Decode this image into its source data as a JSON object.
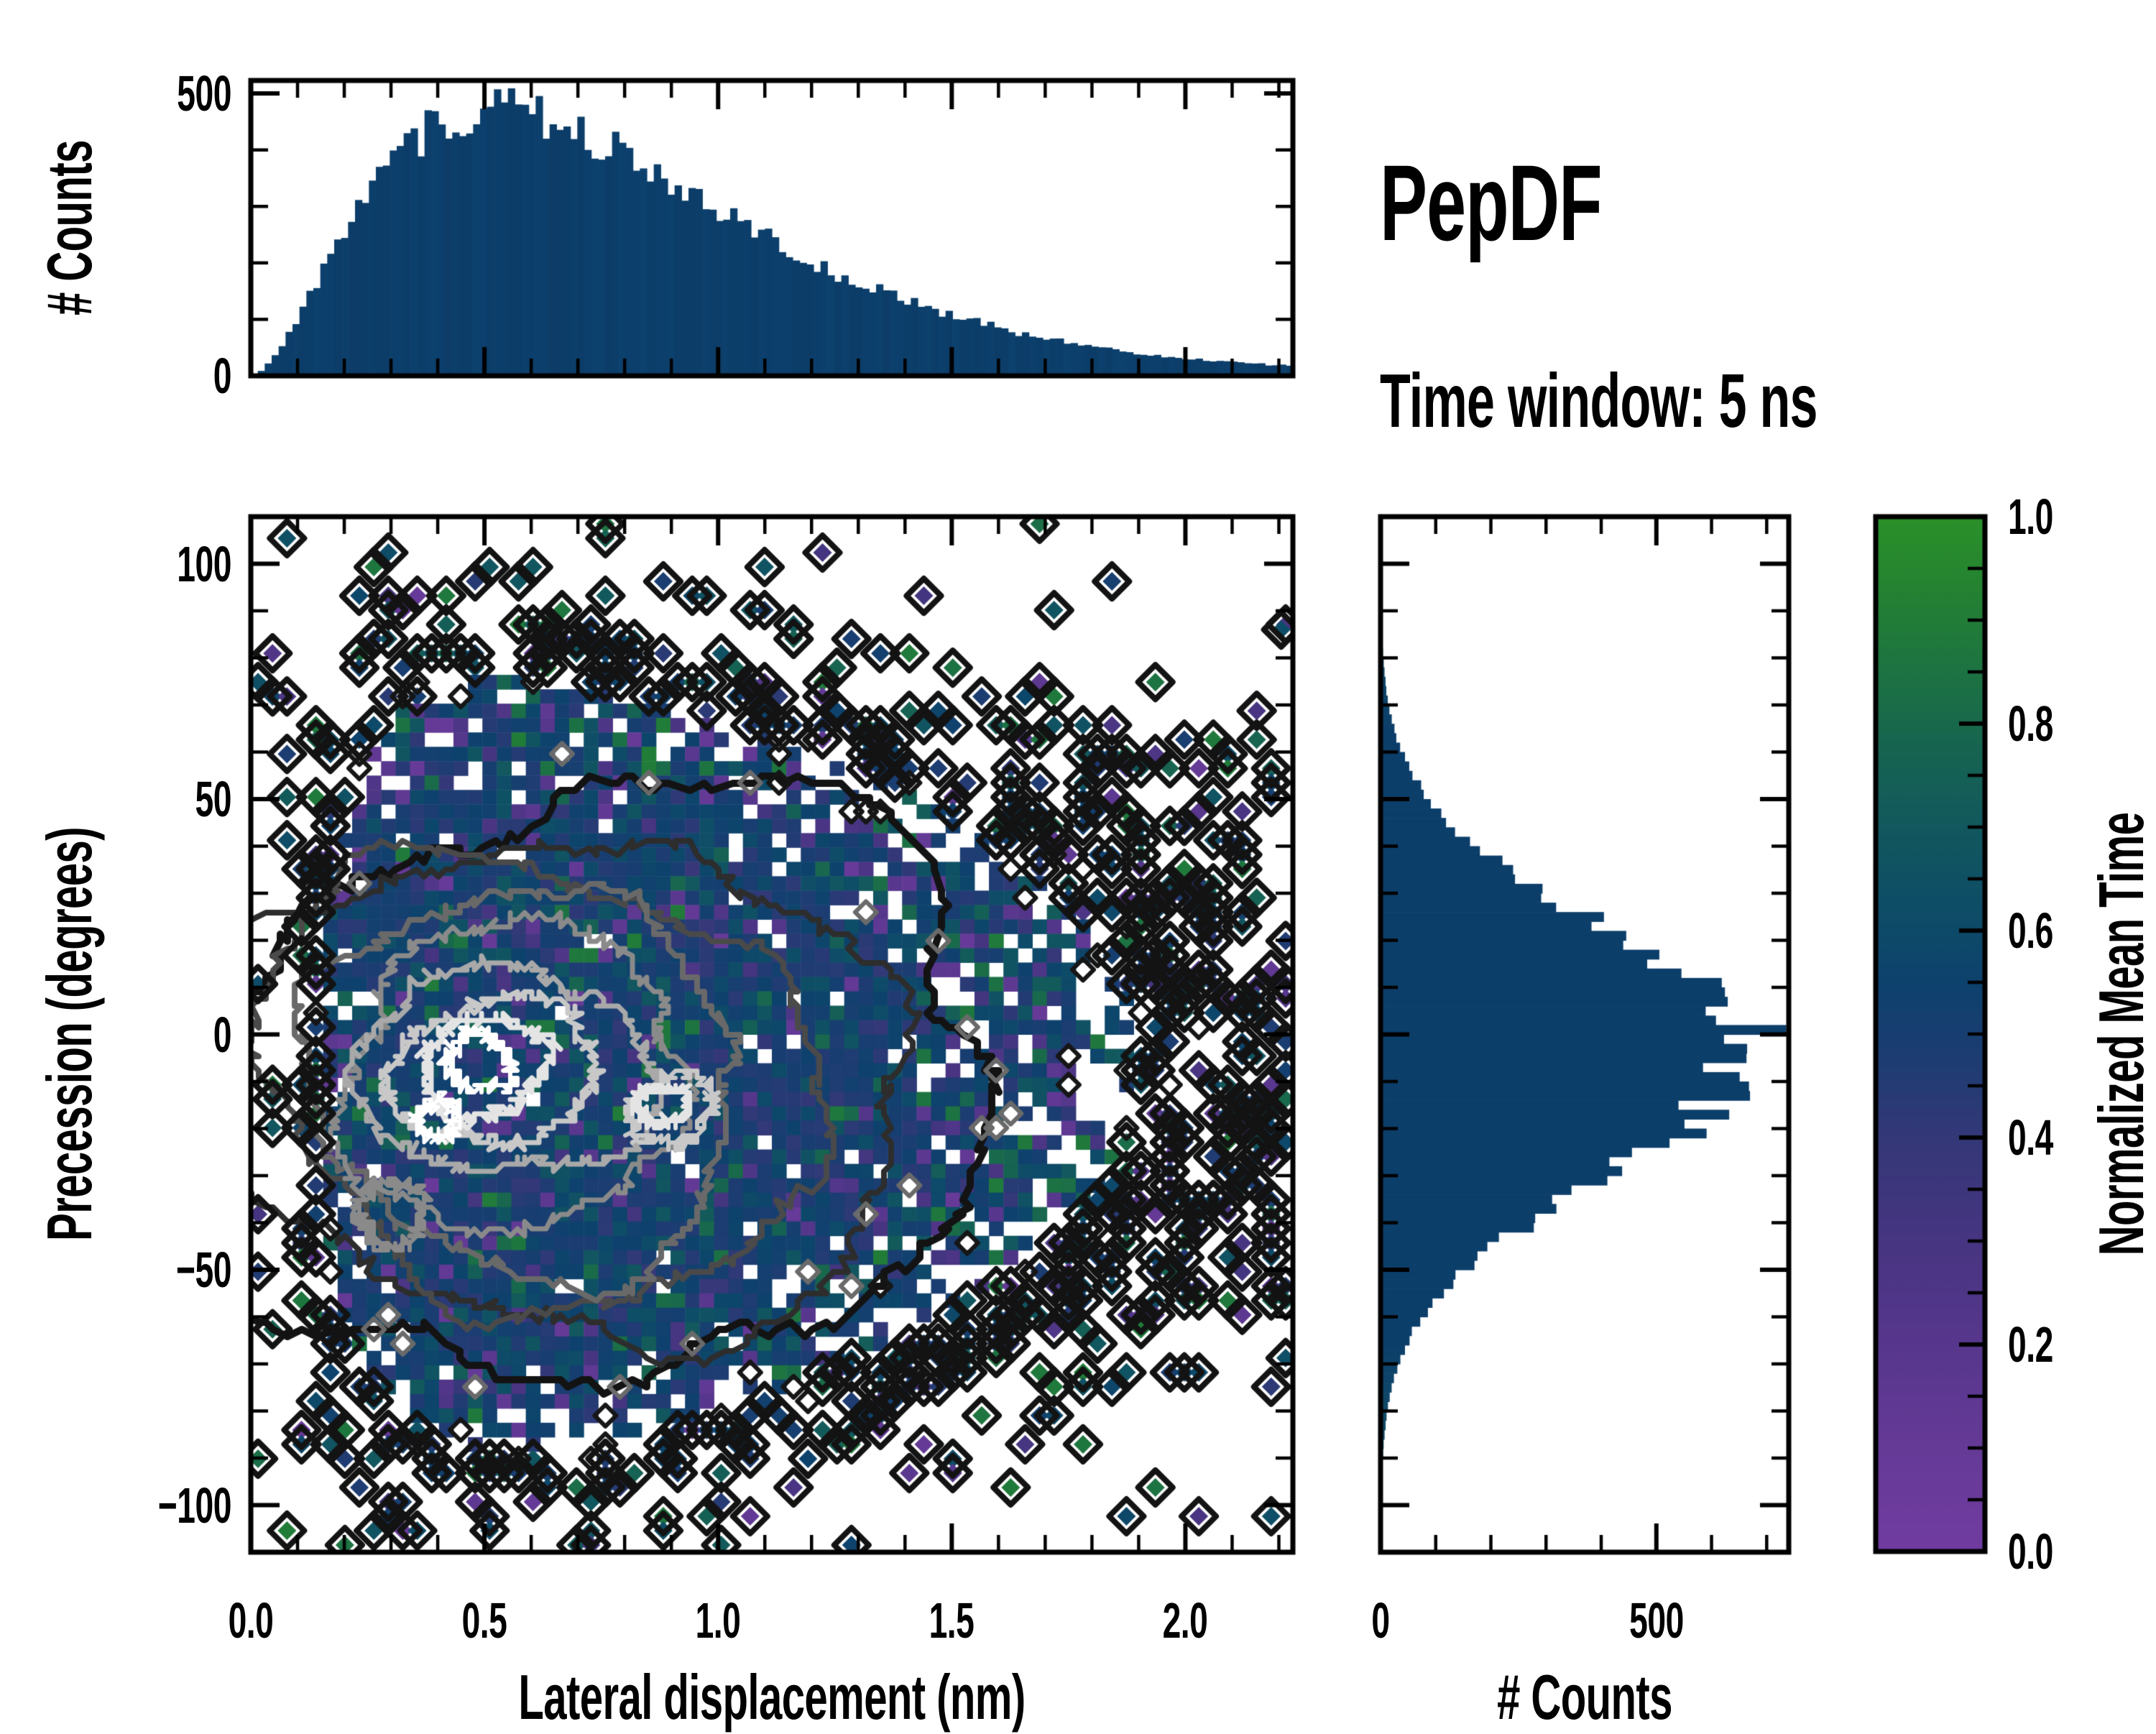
{
  "header": {
    "title": "PepDF",
    "subtitle": "Time window: 5 ns"
  },
  "figure": {
    "background": "#ffffff",
    "spine_color": "#000000",
    "histogram_bar_color": "#0c3e6a",
    "contour_outer_color": "#131313",
    "contour_inner_color": "#ffffff"
  },
  "chart_data": {
    "layout": "joint-plot-2d-histogram-with-marginals",
    "seed": 20240613,
    "top_histogram": {
      "type": "bar",
      "ylabel": "# Counts",
      "xlim": [
        0,
        2.23
      ],
      "ylim": [
        0,
        523
      ],
      "yticks": {
        "values": [
          0,
          500
        ],
        "labels": [
          "0",
          "500"
        ]
      },
      "minor_y_step": 100,
      "bins": 150,
      "shape": {
        "kind": "gamma-like",
        "mode": 0.52,
        "power": 1.8,
        "peak": 472,
        "noise": 0.09
      },
      "bar_color": "#0c3e6a"
    },
    "main_heatmap": {
      "type": "heatmap",
      "xlabel": "Lateral displacement (nm)",
      "ylabel": "Precession (degrees)",
      "xlim": [
        0,
        2.23
      ],
      "ylim": [
        -110,
        110
      ],
      "xticks": {
        "values": [
          0,
          0.5,
          1.0,
          1.5,
          2.0
        ],
        "labels": [
          "0.0",
          "0.5",
          "1.0",
          "1.5",
          "2.0"
        ]
      },
      "yticks": {
        "values": [
          -100,
          -50,
          0,
          50,
          100
        ],
        "labels": [
          "−100",
          "−50",
          "0",
          "50",
          "100"
        ]
      },
      "minor_x_step": 0.1,
      "minor_y_step": 10,
      "grid": {
        "cols": 72,
        "rows": 72
      },
      "density": {
        "x_mode": 0.56,
        "x_sigma": 0.58,
        "x_shift": 0.04,
        "y_center": -6,
        "y_width": 60,
        "y_exp": 2.3
      },
      "value_field": {
        "core_mean": 0.5,
        "core_sd": 0.05,
        "purple_range": [
          0.08,
          0.32
        ],
        "green_range": [
          0.64,
          0.9
        ],
        "teal_range": [
          0.55,
          0.68
        ]
      },
      "sparse_marker": "black-diamond-outline",
      "forced_edge_cell": {
        "x": 2.205,
        "y": 86,
        "value": 0.62
      },
      "contour_levels": [
        {
          "color": "#131313",
          "cx": 0.7,
          "cy": -12,
          "rx": 0.85,
          "ry": 66.0,
          "amp": 0.3,
          "lw": 10
        },
        {
          "color": "#2d2d2d",
          "cx": 0.66,
          "cy": -11,
          "rx": 0.715,
          "ry": 56.0,
          "amp": 0.26,
          "lw": 8
        },
        {
          "color": "#4a4a4a",
          "cx": 0.62,
          "cy": -10,
          "rx": 0.6,
          "ry": 47.0,
          "amp": 0.24,
          "lw": 8
        },
        {
          "color": "#696969",
          "cx": 0.585,
          "cy": -10,
          "rx": 0.49,
          "ry": 38.5,
          "amp": 0.23,
          "lw": 8
        },
        {
          "color": "#8a8a8a",
          "cx": 0.56,
          "cy": -9,
          "rx": 0.39,
          "ry": 30.5,
          "amp": 0.22,
          "lw": 7
        },
        {
          "color": "#a9a9a9",
          "cx": 0.545,
          "cy": -8,
          "rx": 0.3,
          "ry": 23.0,
          "amp": 0.22,
          "lw": 7
        },
        {
          "color": "#c8c8c8",
          "cx": 0.52,
          "cy": -8,
          "rx": 0.21,
          "ry": 16.0,
          "amp": 0.22,
          "lw": 7
        },
        {
          "color": "#e4e4e4",
          "cx": 0.5,
          "cy": -7,
          "rx": 0.135,
          "ry": 10.0,
          "amp": 0.24,
          "lw": 7
        },
        {
          "color": "#ffffff",
          "cx": 0.49,
          "cy": -6,
          "rx": 0.07,
          "ry": 5.5,
          "amp": 0.28,
          "lw": 6
        },
        {
          "color": "#c8c8c8",
          "cx": 0.9,
          "cy": -16,
          "rx": 0.09,
          "ry": 7.0,
          "amp": 0.3,
          "lw": 6
        },
        {
          "color": "#e4e4e4",
          "cx": 0.88,
          "cy": -15,
          "rx": 0.05,
          "ry": 4.0,
          "amp": 0.3,
          "lw": 6
        },
        {
          "color": "#8a8a8a",
          "cx": 0.3,
          "cy": -38,
          "rx": 0.08,
          "ry": 6.0,
          "amp": 0.3,
          "lw": 6
        },
        {
          "color": "#ffffff",
          "cx": 0.4,
          "cy": -18,
          "rx": 0.045,
          "ry": 3.5,
          "amp": 0.3,
          "lw": 5
        }
      ]
    },
    "right_histogram": {
      "type": "bar",
      "orientation": "horizontal",
      "xlabel": "# Counts",
      "xlim": [
        0,
        740
      ],
      "ylim": [
        -110,
        110
      ],
      "xticks": {
        "values": [
          0,
          500
        ],
        "labels": [
          "0",
          "500"
        ]
      },
      "minor_x_step": 100,
      "bins": 110,
      "shape": {
        "kind": "gaussian",
        "center": -4,
        "sigma": 38,
        "peak": 665,
        "noise": 0.09
      },
      "bar_color": "#0c3e6a",
      "tail_tint": "#1b6a5e"
    },
    "colorbar": {
      "label": "Normalized Mean Time",
      "ticks": {
        "values": [
          0.0,
          0.2,
          0.4,
          0.6,
          0.8,
          1.0
        ],
        "labels": [
          "0.0",
          "0.2",
          "0.4",
          "0.6",
          "0.8",
          "1.0"
        ]
      },
      "minor_step": 0.05,
      "stops": [
        [
          0.0,
          "#713ca1"
        ],
        [
          0.1,
          "#653a97"
        ],
        [
          0.2,
          "#57378d"
        ],
        [
          0.3,
          "#473581"
        ],
        [
          0.4,
          "#343878"
        ],
        [
          0.48,
          "#1c3d72"
        ],
        [
          0.55,
          "#0d426d"
        ],
        [
          0.62,
          "#0e4d67"
        ],
        [
          0.7,
          "#12585e"
        ],
        [
          0.78,
          "#176550"
        ],
        [
          0.86,
          "#1e7540"
        ],
        [
          0.93,
          "#248232"
        ],
        [
          1.0,
          "#2b9129"
        ]
      ]
    }
  }
}
